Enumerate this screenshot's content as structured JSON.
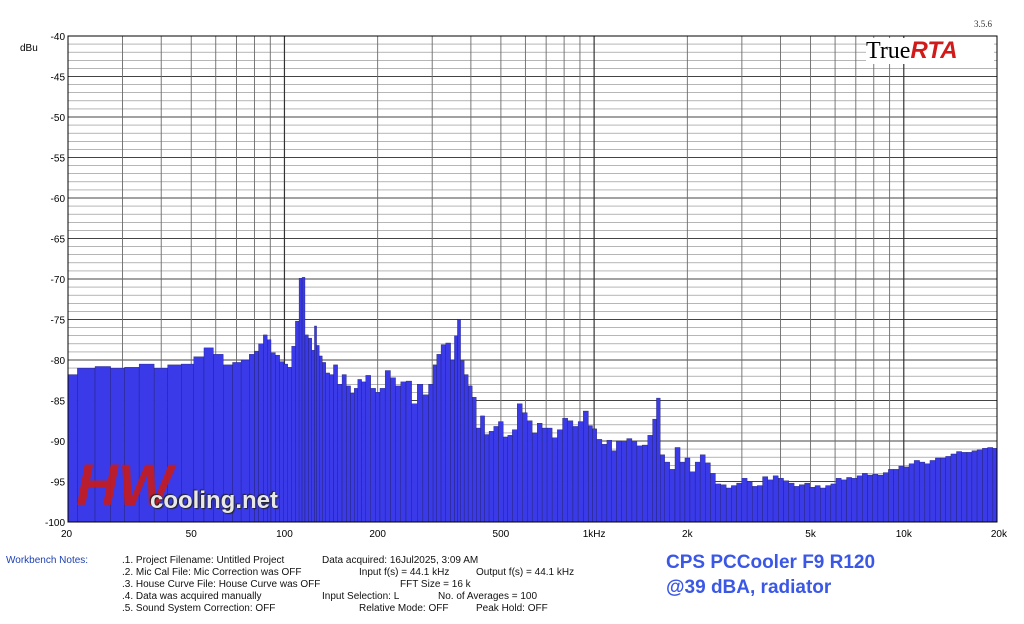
{
  "version": "3.5.6",
  "logo": {
    "part1": "True",
    "part2": "RTA"
  },
  "watermark": {
    "mark": "HW",
    "text": "cooling.net"
  },
  "workbench": {
    "label": "Workbench Notes:",
    "lines": [
      ".1. Project Filename: Untitled Project",
      ".2. Mic Cal File: Mic Correction was OFF",
      ".3. House Curve File: House Curve was OFF",
      ".4. Data was acquired manually",
      ".5. Sound System Correction: OFF"
    ],
    "col2": [
      "Data acquired: 16Jul2025, 3:09 AM",
      "Input f(s) = 44.1 kHz",
      "FFT Size = 16 k",
      "Input Selection: L",
      "Relative Mode:  OFF"
    ],
    "col3": [
      "",
      "Output f(s) = 44.1 kHz",
      "",
      "No. of Averages = 100",
      "Peak Hold: OFF"
    ]
  },
  "caption": {
    "line1": "CPS PCCooler F9 R120",
    "line2": "@39 dBA, radiator"
  },
  "chart_data": {
    "type": "bar",
    "ylabel": "dBu",
    "ylim": [
      -100,
      -40
    ],
    "xlim": [
      20,
      20000
    ],
    "x_scale": "log",
    "grid": true,
    "bar_color": "#3a3ae8",
    "y_ticks": [
      "-40",
      "-45",
      "-50",
      "-55",
      "-60",
      "-65",
      "-70",
      "-75",
      "-80",
      "-85",
      "-90",
      "-95",
      "-100"
    ],
    "x_ticks": [
      "20",
      "50",
      "100",
      "200",
      "500",
      "1kHz",
      "2k",
      "5k",
      "10k",
      "20k"
    ],
    "x_tick_values": [
      20,
      50,
      100,
      200,
      500,
      1000,
      2000,
      5000,
      10000,
      20000
    ],
    "points": [
      [
        20,
        -81.8
      ],
      [
        23,
        -81
      ],
      [
        26,
        -80.8
      ],
      [
        29,
        -81
      ],
      [
        32,
        -80.9
      ],
      [
        36,
        -80.5
      ],
      [
        40,
        -81
      ],
      [
        44,
        -80.6
      ],
      [
        49,
        -80.5
      ],
      [
        53,
        -79.6
      ],
      [
        57,
        -78.5
      ],
      [
        61,
        -79.3
      ],
      [
        66,
        -80.6
      ],
      [
        70,
        -80.3
      ],
      [
        75,
        -80
      ],
      [
        79,
        -79.3
      ],
      [
        81,
        -78.9
      ],
      [
        84,
        -78
      ],
      [
        87,
        -76.9
      ],
      [
        89,
        -77.5
      ],
      [
        92,
        -79.1
      ],
      [
        95,
        -79.4
      ],
      [
        98,
        -80.2
      ],
      [
        101,
        -80.5
      ],
      [
        104,
        -80.9
      ],
      [
        107,
        -78.3
      ],
      [
        110,
        -75.2
      ],
      [
        113,
        -69.9
      ],
      [
        115,
        -69.8
      ],
      [
        118,
        -76.9
      ],
      [
        121,
        -77.3
      ],
      [
        124,
        -78.8
      ],
      [
        126,
        -75.8
      ],
      [
        128,
        -78.2
      ],
      [
        131,
        -79.5
      ],
      [
        134,
        -80.3
      ],
      [
        138,
        -81.6
      ],
      [
        142,
        -81.8
      ],
      [
        146,
        -80.6
      ],
      [
        151,
        -83
      ],
      [
        156,
        -81.8
      ],
      [
        161,
        -83.2
      ],
      [
        166,
        -84.1
      ],
      [
        170,
        -83.5
      ],
      [
        175,
        -82.4
      ],
      [
        180,
        -82.7
      ],
      [
        186,
        -81.9
      ],
      [
        194,
        -83.5
      ],
      [
        200,
        -84
      ],
      [
        207,
        -83.5
      ],
      [
        216,
        -81.3
      ],
      [
        224,
        -82.2
      ],
      [
        233,
        -83.2
      ],
      [
        242,
        -82.7
      ],
      [
        252,
        -82.6
      ],
      [
        263,
        -85.4
      ],
      [
        274,
        -83
      ],
      [
        286,
        -84.3
      ],
      [
        298,
        -83
      ],
      [
        306,
        -80.6
      ],
      [
        315,
        -79.3
      ],
      [
        326,
        -78.1
      ],
      [
        338,
        -77.9
      ],
      [
        350,
        -80
      ],
      [
        358,
        -77
      ],
      [
        366,
        -75
      ],
      [
        375,
        -80.1
      ],
      [
        386,
        -81.8
      ],
      [
        398,
        -83.2
      ],
      [
        410,
        -84.6
      ],
      [
        423,
        -88.4
      ],
      [
        436,
        -86.9
      ],
      [
        450,
        -89.2
      ],
      [
        466,
        -88.8
      ],
      [
        482,
        -88.2
      ],
      [
        500,
        -87.6
      ],
      [
        518,
        -89.5
      ],
      [
        535,
        -89.3
      ],
      [
        554,
        -88.6
      ],
      [
        575,
        -85.4
      ],
      [
        597,
        -86.5
      ],
      [
        619,
        -87.5
      ],
      [
        643,
        -89
      ],
      [
        667,
        -87.8
      ],
      [
        692,
        -88.4
      ],
      [
        718,
        -88.4
      ],
      [
        746,
        -89.6
      ],
      [
        776,
        -88.6
      ],
      [
        806,
        -87.2
      ],
      [
        838,
        -87.5
      ],
      [
        871,
        -88.2
      ],
      [
        905,
        -87.6
      ],
      [
        941,
        -86.3
      ],
      [
        976,
        -88.1
      ],
      [
        1000,
        -88.5
      ],
      [
        1040,
        -89.8
      ],
      [
        1080,
        -90.4
      ],
      [
        1120,
        -89.9
      ],
      [
        1160,
        -91.2
      ],
      [
        1200,
        -90
      ],
      [
        1250,
        -90.1
      ],
      [
        1300,
        -89.7
      ],
      [
        1350,
        -90.1
      ],
      [
        1400,
        -90.6
      ],
      [
        1460,
        -90.5
      ],
      [
        1520,
        -89.3
      ],
      [
        1570,
        -87.3
      ],
      [
        1610,
        -84.7
      ],
      [
        1660,
        -91.7
      ],
      [
        1720,
        -92.6
      ],
      [
        1790,
        -93.5
      ],
      [
        1860,
        -90.8
      ],
      [
        1930,
        -92.6
      ],
      [
        2000,
        -92.1
      ],
      [
        2080,
        -93.8
      ],
      [
        2160,
        -92.6
      ],
      [
        2240,
        -91.7
      ],
      [
        2330,
        -92.7
      ],
      [
        2420,
        -94
      ],
      [
        2510,
        -95.3
      ],
      [
        2620,
        -95.4
      ],
      [
        2720,
        -95.8
      ],
      [
        2830,
        -95.5
      ],
      [
        2940,
        -95.2
      ],
      [
        3060,
        -94.6
      ],
      [
        3180,
        -95
      ],
      [
        3300,
        -95.6
      ],
      [
        3430,
        -95.5
      ],
      [
        3570,
        -94.4
      ],
      [
        3710,
        -94.8
      ],
      [
        3860,
        -94.3
      ],
      [
        4010,
        -94.6
      ],
      [
        4170,
        -94.9
      ],
      [
        4340,
        -95.2
      ],
      [
        4510,
        -95.6
      ],
      [
        4690,
        -95.4
      ],
      [
        4880,
        -95.2
      ],
      [
        5070,
        -95.7
      ],
      [
        5270,
        -95.5
      ],
      [
        5480,
        -95.8
      ],
      [
        5700,
        -95.5
      ],
      [
        5930,
        -95.3
      ],
      [
        6160,
        -94.6
      ],
      [
        6410,
        -94.8
      ],
      [
        6660,
        -94.5
      ],
      [
        6930,
        -94.6
      ],
      [
        7200,
        -94.3
      ],
      [
        7490,
        -94
      ],
      [
        7780,
        -94.2
      ],
      [
        8090,
        -94.1
      ],
      [
        8410,
        -94.2
      ],
      [
        8750,
        -93.9
      ],
      [
        9090,
        -93.5
      ],
      [
        9450,
        -93.5
      ],
      [
        9830,
        -93.1
      ],
      [
        10200,
        -93.2
      ],
      [
        10600,
        -92.8
      ],
      [
        11000,
        -92.4
      ],
      [
        11500,
        -92.6
      ],
      [
        11900,
        -92.8
      ],
      [
        12400,
        -92.4
      ],
      [
        12900,
        -92.1
      ],
      [
        13400,
        -92.1
      ],
      [
        13900,
        -91.9
      ],
      [
        14500,
        -91.6
      ],
      [
        15100,
        -91.3
      ],
      [
        15700,
        -91.4
      ],
      [
        16300,
        -91.4
      ],
      [
        16900,
        -91.2
      ],
      [
        17600,
        -91.1
      ],
      [
        18300,
        -90.9
      ],
      [
        19000,
        -90.8
      ],
      [
        19800,
        -90.9
      ]
    ]
  }
}
